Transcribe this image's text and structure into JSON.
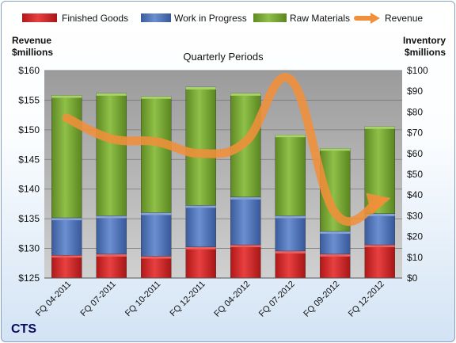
{
  "chart_data": {
    "type": "bar",
    "title": "Quarterly Periods",
    "company": "CTS",
    "categories": [
      "FQ 04-2011",
      "FQ 07-2011",
      "FQ 10-2011",
      "FQ 12-2011",
      "FQ 04-2012",
      "FQ 07-2012",
      "FQ 09-2012",
      "FQ 12-2012"
    ],
    "stacked": true,
    "left_axis": {
      "label_lines": [
        "Revenue",
        "$millions"
      ],
      "range": [
        125,
        160
      ],
      "ticks": [
        125,
        130,
        135,
        140,
        145,
        150,
        155,
        160
      ],
      "tick_labels": [
        "$125",
        "$130",
        "$135",
        "$140",
        "$145",
        "$150",
        "$155",
        "$160"
      ]
    },
    "right_axis": {
      "label_lines": [
        "Inventory",
        "$millions"
      ],
      "range": [
        0,
        100
      ],
      "ticks": [
        0,
        10,
        20,
        30,
        40,
        50,
        60,
        70,
        80,
        90,
        100
      ],
      "tick_labels": [
        "$0",
        "$10",
        "$20",
        "$30",
        "$40",
        "$50",
        "$60",
        "$70",
        "$80",
        "$90",
        "$100"
      ]
    },
    "series": [
      {
        "name": "Finished Goods",
        "type": "bar",
        "axis": "right",
        "color": "#d42a2a",
        "values": [
          11,
          11.5,
          10.5,
          15,
          16,
          13,
          11.5,
          16
        ]
      },
      {
        "name": "Work in Progress",
        "type": "bar",
        "axis": "right",
        "color": "#4f75bd",
        "values": [
          18,
          18.5,
          21,
          20,
          23,
          17,
          11,
          15
        ]
      },
      {
        "name": "Raw Materials",
        "type": "bar",
        "axis": "right",
        "color": "#7aa83a",
        "values": [
          59,
          59,
          56,
          57,
          50,
          39,
          40,
          42
        ]
      },
      {
        "name": "Revenue",
        "type": "line",
        "axis": "left",
        "color": "#f0903a",
        "values": [
          152,
          148.5,
          148,
          146,
          148,
          158.5,
          136,
          138
        ]
      }
    ],
    "legend_position": "top",
    "grid": true
  }
}
